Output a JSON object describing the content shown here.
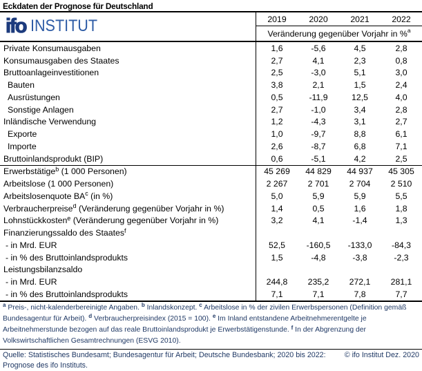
{
  "title": "Eckdaten der Prognose für Deutschland",
  "logo": {
    "ifo": "ifo",
    "institut": "INSTITUT"
  },
  "header": {
    "years": [
      "2019",
      "2020",
      "2021",
      "2022"
    ],
    "unit_note": "Veränderung gegenüber Vorjahr in %",
    "unit_note_sup": "a"
  },
  "table": {
    "rows": [
      {
        "label": "Private Konsumausgaben",
        "sup": "",
        "post": "",
        "indent": 0,
        "sep": false,
        "values": [
          "1,6",
          "-5,6",
          "4,5",
          "2,8"
        ]
      },
      {
        "label": "Konsumausgaben des Staates",
        "sup": "",
        "post": "",
        "indent": 0,
        "sep": false,
        "values": [
          "2,7",
          "4,1",
          "2,3",
          "0,8"
        ]
      },
      {
        "label": "Bruttoanlageinvestitionen",
        "sup": "",
        "post": "",
        "indent": 0,
        "sep": false,
        "values": [
          "2,5",
          "-3,0",
          "5,1",
          "3,0"
        ]
      },
      {
        "label": "Bauten",
        "sup": "",
        "post": "",
        "indent": 1,
        "sep": false,
        "values": [
          "3,8",
          "2,1",
          "1,5",
          "2,4"
        ]
      },
      {
        "label": "Ausrüstungen",
        "sup": "",
        "post": "",
        "indent": 1,
        "sep": false,
        "values": [
          "0,5",
          "-11,9",
          "12,5",
          "4,0"
        ]
      },
      {
        "label": "Sonstige Anlagen",
        "sup": "",
        "post": "",
        "indent": 1,
        "sep": false,
        "values": [
          "2,7",
          "-1,0",
          "3,4",
          "2,8"
        ]
      },
      {
        "label": "Inländische Verwendung",
        "sup": "",
        "post": "",
        "indent": 0,
        "sep": false,
        "values": [
          "1,2",
          "-4,3",
          "3,1",
          "2,7"
        ]
      },
      {
        "label": "Exporte",
        "sup": "",
        "post": "",
        "indent": 1,
        "sep": false,
        "values": [
          "1,0",
          "-9,7",
          "8,8",
          "6,1"
        ]
      },
      {
        "label": "Importe",
        "sup": "",
        "post": "",
        "indent": 1,
        "sep": false,
        "values": [
          "2,6",
          "-8,7",
          "6,8",
          "7,1"
        ]
      },
      {
        "label": "Bruttoinlandsprodukt (BIP)",
        "sup": "",
        "post": "",
        "indent": 0,
        "sep": false,
        "values": [
          "0,6",
          "-5,1",
          "4,2",
          "2,5"
        ]
      },
      {
        "label": "Erwerbstätige",
        "sup": "b",
        "post": " (1 000 Personen)",
        "indent": 0,
        "sep": true,
        "values": [
          "45 269",
          "44 829",
          "44 937",
          "45 305"
        ]
      },
      {
        "label": "Arbeitslose (1 000 Personen)",
        "sup": "",
        "post": "",
        "indent": 0,
        "sep": false,
        "values": [
          "2 267",
          "2 701",
          "2 704",
          "2 510"
        ]
      },
      {
        "label": "Arbeitslosenquote BA",
        "sup": "c",
        "post": " (in %)",
        "indent": 0,
        "sep": false,
        "values": [
          "5,0",
          "5,9",
          "5,9",
          "5,5"
        ]
      },
      {
        "label": "Verbraucherpreise",
        "sup": "d",
        "post": " (Veränderung gegenüber Vorjahr in %)",
        "indent": 0,
        "sep": false,
        "values": [
          "1,4",
          "0,5",
          "1,6",
          "1,8"
        ]
      },
      {
        "label": "Lohnstückkosten",
        "sup": "e",
        "post": " (Veränderung gegenüber Vorjahr in %)",
        "indent": 0,
        "sep": false,
        "values": [
          "3,2",
          "4,1",
          "-1,4",
          "1,3"
        ]
      },
      {
        "label": "Finanzierungssaldo des Staates",
        "sup": "f",
        "post": "",
        "indent": 0,
        "sep": false,
        "values": [
          "",
          "",
          "",
          ""
        ]
      },
      {
        "label": "- in Mrd. EUR",
        "sup": "",
        "post": "",
        "indent": 0.5,
        "sep": false,
        "values": [
          "52,5",
          "-160,5",
          "-133,0",
          "-84,3"
        ]
      },
      {
        "label": "- in % des Bruttoinlandsprodukts",
        "sup": "",
        "post": "",
        "indent": 0.5,
        "sep": false,
        "values": [
          "1,5",
          "-4,8",
          "-3,8",
          "-2,3"
        ]
      },
      {
        "label": "Leistungsbilanzsaldo",
        "sup": "",
        "post": "",
        "indent": 0,
        "sep": false,
        "values": [
          "",
          "",
          "",
          ""
        ]
      },
      {
        "label": "- in Mrd. EUR",
        "sup": "",
        "post": "",
        "indent": 0.5,
        "sep": false,
        "values": [
          "244,8",
          "235,2",
          "272,1",
          "281,1"
        ]
      },
      {
        "label": "- in % des Bruttoinlandsprodukts",
        "sup": "",
        "post": "",
        "indent": 0.5,
        "sep": false,
        "values": [
          "7,1",
          "7,1",
          "7,8",
          "7,7"
        ]
      }
    ]
  },
  "footnotes": [
    {
      "sup": "a",
      "text": "Preis-, nicht-kalenderbereinigte Angaben."
    },
    {
      "sup": "b",
      "text": "Inlandskonzept."
    },
    {
      "sup": "c",
      "text": "Arbeitslose in % der zivilen Erwerbspersonen (Definition gemäß Bundesagentur für Arbeit)."
    },
    {
      "sup": "d",
      "text": "Verbraucherpreisindex (2015 = 100)."
    },
    {
      "sup": "e",
      "text": "Im Inland entstandene Arbeitnehmerentgelte je Arbeitnehmerstunde bezogen auf das reale Bruttoinlandsprodukt je Erwerbstätigenstunde."
    },
    {
      "sup": "f",
      "text": "In der Abgrenzung der Volkswirtschaftlichen Gesamtrechnungen (ESVG 2010)."
    }
  ],
  "source": {
    "left": "Quelle: Statistisches Bundesamt; Bundesagentur für Arbeit; Deutsche Bundesbank; 2020 bis 2022: Prognose des ifo Instituts.",
    "right": "© ifo Institut Dez. 2020"
  }
}
